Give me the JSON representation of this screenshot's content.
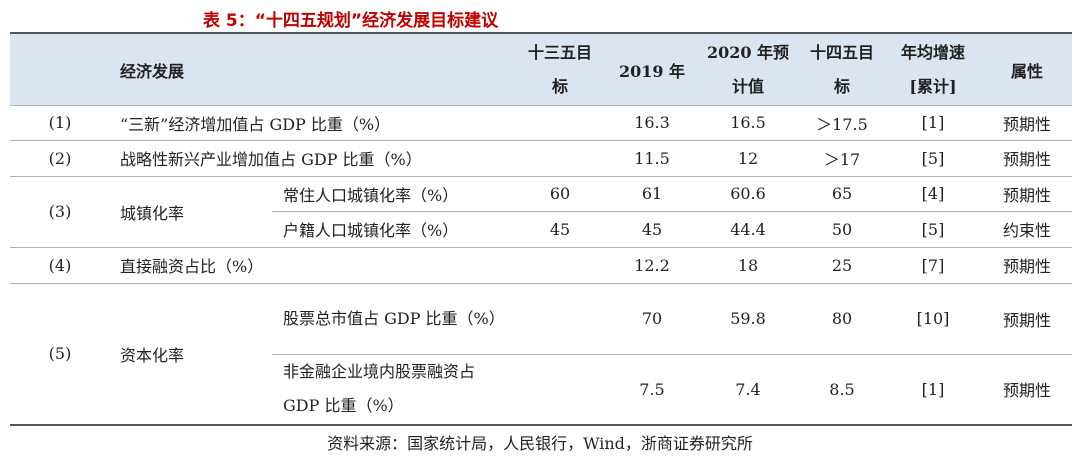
{
  "title": "表 5：“十四五规划”经济发展目标建议",
  "headers": {
    "item": "经济发展",
    "plan13_line1": "十三五目",
    "plan13_line2": "标",
    "y2019": "2019 年",
    "est2020_line1": "2020 年预",
    "est2020_line2": "计值",
    "plan14_line1": "十四五目",
    "plan14_line2": "标",
    "avg_growth_line1": "年均增速",
    "avg_growth_line2": "[累计]",
    "attribute": "属性"
  },
  "rows": [
    {
      "num": "(1)",
      "name": "“三新”经济增加值占 GDP 比重（%）",
      "plan13": "",
      "y2019": "16.3",
      "est2020": "16.5",
      "plan14": "＞17.5",
      "avg": "[1]",
      "attr": "预期性"
    },
    {
      "num": "(2)",
      "name": "战略性新兴产业增加值占 GDP 比重（%）",
      "plan13": "",
      "y2019": "11.5",
      "est2020": "12",
      "plan14": "＞17",
      "avg": "[5]",
      "attr": "预期性"
    },
    {
      "num": "(3)",
      "group": "城镇化率",
      "subs": [
        {
          "name": "常住人口城镇化率（%）",
          "plan13": "60",
          "y2019": "61",
          "est2020": "60.6",
          "plan14": "65",
          "avg": "[4]",
          "attr": "预期性"
        },
        {
          "name": "户籍人口城镇化率（%）",
          "plan13": "45",
          "y2019": "45",
          "est2020": "44.4",
          "plan14": "50",
          "avg": "[5]",
          "attr": "约束性"
        }
      ]
    },
    {
      "num": "(4)",
      "name": "直接融资占比（%）",
      "plan13": "",
      "y2019": "12.2",
      "est2020": "18",
      "plan14": "25",
      "avg": "[7]",
      "attr": "预期性"
    },
    {
      "num": "(5)",
      "group": "资本化率",
      "subs": [
        {
          "name": "股票总市值占 GDP 比重（%）",
          "plan13": "",
          "y2019": "70",
          "est2020": "59.8",
          "plan14": "80",
          "avg": "[10]",
          "attr": "预期性"
        },
        {
          "name": "非金融企业境内股票融资占 GDP 比重（%）",
          "plan13": "",
          "y2019": "7.5",
          "est2020": "7.4",
          "plan14": "8.5",
          "avg": "[1]",
          "attr": "预期性"
        }
      ]
    }
  ],
  "source": "资料来源：国家统计局，人民银行，Wind，浙商证券研究所"
}
